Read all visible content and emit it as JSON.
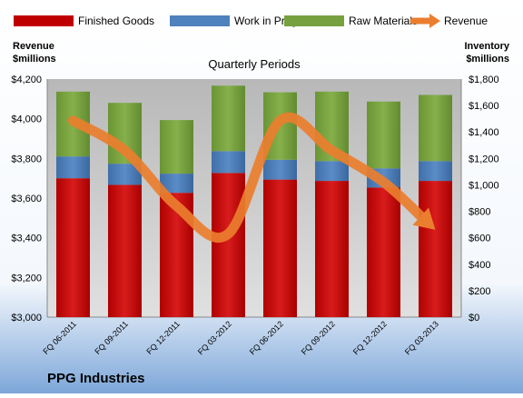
{
  "chart_data": {
    "type": "bar",
    "title": "Quarterly Periods",
    "company": "PPG Industries",
    "left_axis_label": [
      "Revenue",
      "$millions"
    ],
    "right_axis_label": [
      "Inventory",
      "$millions"
    ],
    "categories": [
      "FQ 06-2011",
      "FQ 09-2011",
      "FQ 12-2011",
      "FQ 03-2012",
      "FQ 06-2012",
      "FQ 09-2012",
      "FQ 12-2012",
      "FQ 03-2013"
    ],
    "left_axis": {
      "min": 3000,
      "max": 4200,
      "step": 200,
      "ticks": [
        "$3,000",
        "$3,200",
        "$3,400",
        "$3,600",
        "$3,800",
        "$4,000",
        "$4,200"
      ]
    },
    "right_axis": {
      "min": 0,
      "max": 1800,
      "step": 200,
      "ticks": [
        "$0",
        "$200",
        "$400",
        "$600",
        "$800",
        "$1,000",
        "$1,200",
        "$1,400",
        "$1,600",
        "$1,800"
      ]
    },
    "series": [
      {
        "name": "Finished Goods",
        "type": "stacked-bar",
        "axis": "right",
        "color": "#c00000",
        "values": [
          1050,
          1000,
          940,
          1090,
          1040,
          1030,
          980,
          1030
        ]
      },
      {
        "name": "Work in Progress",
        "type": "stacked-bar",
        "axis": "right",
        "color": "#4f81bd",
        "values": [
          165,
          160,
          145,
          165,
          150,
          150,
          145,
          150
        ]
      },
      {
        "name": "Raw Materials",
        "type": "stacked-bar",
        "axis": "right",
        "color": "#77a13e",
        "values": [
          490,
          460,
          405,
          495,
          510,
          525,
          505,
          500
        ]
      },
      {
        "name": "Revenue",
        "type": "line-arrow",
        "axis": "left",
        "color": "#ea7e2e",
        "values": [
          3990,
          3840,
          3560,
          3420,
          3990,
          3840,
          3680,
          3440
        ]
      }
    ],
    "legend_position": "top",
    "grid": false
  },
  "colors": {
    "plot_background_top": "#a8a8a8",
    "plot_background_bottom": "#d8d8d8",
    "page_gradient_top": "#ffffff",
    "page_gradient_bottom": "#7da7d9",
    "revenue_arrow": "#ea7e2e"
  }
}
